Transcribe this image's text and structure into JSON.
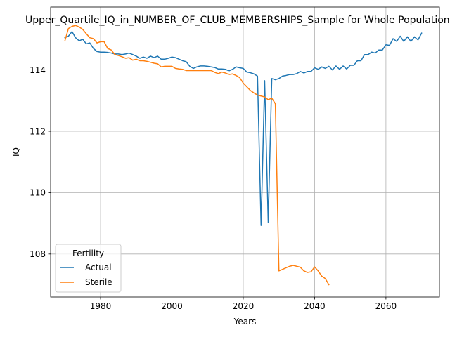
{
  "chart_data": {
    "type": "line",
    "title": "Upper_Quartile_IQ_in_NUMBER_OF_CLUB_MEMBERSHIPS_Sample for Whole Population",
    "xlabel": "Years",
    "ylabel": "IQ",
    "xlim": [
      1966,
      2075
    ],
    "ylim": [
      106.6,
      116.05
    ],
    "x_ticks": [
      1980,
      2000,
      2020,
      2040,
      2060
    ],
    "y_ticks": [
      108,
      110,
      112,
      114
    ],
    "grid": true,
    "legend": {
      "title": "Fertility",
      "placement": "lower-left"
    },
    "series": [
      {
        "name": "Actual",
        "color": "#1f77b4",
        "points": [
          [
            1970,
            115.05
          ],
          [
            1971,
            115.1
          ],
          [
            1972,
            115.25
          ],
          [
            1973,
            115.05
          ],
          [
            1974,
            114.95
          ],
          [
            1975,
            115.0
          ],
          [
            1976,
            114.85
          ],
          [
            1977,
            114.88
          ],
          [
            1978,
            114.7
          ],
          [
            1979,
            114.6
          ],
          [
            1980,
            114.58
          ],
          [
            1981,
            114.58
          ],
          [
            1982,
            114.57
          ],
          [
            1983,
            114.55
          ],
          [
            1984,
            114.52
          ],
          [
            1985,
            114.52
          ],
          [
            1986,
            114.5
          ],
          [
            1987,
            114.52
          ],
          [
            1988,
            114.55
          ],
          [
            1989,
            114.5
          ],
          [
            1990,
            114.45
          ],
          [
            1991,
            114.38
          ],
          [
            1992,
            114.42
          ],
          [
            1993,
            114.38
          ],
          [
            1994,
            114.45
          ],
          [
            1995,
            114.4
          ],
          [
            1996,
            114.45
          ],
          [
            1997,
            114.35
          ],
          [
            1998,
            114.35
          ],
          [
            1999,
            114.38
          ],
          [
            2000,
            114.42
          ],
          [
            2001,
            114.4
          ],
          [
            2002,
            114.35
          ],
          [
            2003,
            114.3
          ],
          [
            2004,
            114.27
          ],
          [
            2005,
            114.12
          ],
          [
            2006,
            114.05
          ],
          [
            2007,
            114.1
          ],
          [
            2008,
            114.13
          ],
          [
            2009,
            114.13
          ],
          [
            2010,
            114.12
          ],
          [
            2011,
            114.1
          ],
          [
            2012,
            114.08
          ],
          [
            2013,
            114.03
          ],
          [
            2014,
            114.03
          ],
          [
            2015,
            114.02
          ],
          [
            2016,
            113.97
          ],
          [
            2017,
            114.02
          ],
          [
            2018,
            114.1
          ],
          [
            2019,
            114.07
          ],
          [
            2020,
            114.05
          ],
          [
            2021,
            113.93
          ],
          [
            2022,
            113.91
          ],
          [
            2023,
            113.87
          ],
          [
            2024,
            113.8
          ],
          [
            2025,
            108.93
          ],
          [
            2026,
            113.65
          ],
          [
            2027,
            109.03
          ],
          [
            2028,
            113.72
          ],
          [
            2029,
            113.68
          ],
          [
            2030,
            113.72
          ],
          [
            2031,
            113.8
          ],
          [
            2032,
            113.82
          ],
          [
            2033,
            113.85
          ],
          [
            2034,
            113.85
          ],
          [
            2035,
            113.88
          ],
          [
            2036,
            113.95
          ],
          [
            2037,
            113.9
          ],
          [
            2038,
            113.95
          ],
          [
            2039,
            113.95
          ],
          [
            2040,
            114.07
          ],
          [
            2041,
            114.02
          ],
          [
            2042,
            114.1
          ],
          [
            2043,
            114.05
          ],
          [
            2044,
            114.12
          ],
          [
            2045,
            114.0
          ],
          [
            2046,
            114.13
          ],
          [
            2047,
            114.02
          ],
          [
            2048,
            114.13
          ],
          [
            2049,
            114.03
          ],
          [
            2050,
            114.15
          ],
          [
            2051,
            114.15
          ],
          [
            2052,
            114.3
          ],
          [
            2053,
            114.3
          ],
          [
            2054,
            114.5
          ],
          [
            2055,
            114.5
          ],
          [
            2056,
            114.58
          ],
          [
            2057,
            114.55
          ],
          [
            2058,
            114.65
          ],
          [
            2059,
            114.65
          ],
          [
            2060,
            114.82
          ],
          [
            2061,
            114.8
          ],
          [
            2062,
            115.02
          ],
          [
            2063,
            114.93
          ],
          [
            2064,
            115.1
          ],
          [
            2065,
            114.93
          ],
          [
            2066,
            115.08
          ],
          [
            2067,
            114.93
          ],
          [
            2068,
            115.08
          ],
          [
            2069,
            114.98
          ],
          [
            2070,
            115.2
          ]
        ]
      },
      {
        "name": "Sterile",
        "color": "#ff7f0e",
        "points": [
          [
            1970,
            114.95
          ],
          [
            1971,
            115.35
          ],
          [
            1972,
            115.42
          ],
          [
            1973,
            115.45
          ],
          [
            1974,
            115.4
          ],
          [
            1975,
            115.32
          ],
          [
            1976,
            115.18
          ],
          [
            1977,
            115.05
          ],
          [
            1978,
            115.02
          ],
          [
            1979,
            114.88
          ],
          [
            1980,
            114.92
          ],
          [
            1981,
            114.92
          ],
          [
            1982,
            114.7
          ],
          [
            1983,
            114.65
          ],
          [
            1984,
            114.5
          ],
          [
            1985,
            114.47
          ],
          [
            1986,
            114.43
          ],
          [
            1987,
            114.38
          ],
          [
            1988,
            114.4
          ],
          [
            1989,
            114.32
          ],
          [
            1990,
            114.35
          ],
          [
            1991,
            114.3
          ],
          [
            1992,
            114.3
          ],
          [
            1993,
            114.28
          ],
          [
            1994,
            114.25
          ],
          [
            1995,
            114.22
          ],
          [
            1996,
            114.2
          ],
          [
            1997,
            114.1
          ],
          [
            1998,
            114.12
          ],
          [
            1999,
            114.12
          ],
          [
            2000,
            114.12
          ],
          [
            2001,
            114.05
          ],
          [
            2002,
            114.03
          ],
          [
            2003,
            114.02
          ],
          [
            2004,
            113.98
          ],
          [
            2005,
            113.98
          ],
          [
            2006,
            113.98
          ],
          [
            2007,
            113.98
          ],
          [
            2008,
            113.98
          ],
          [
            2009,
            113.98
          ],
          [
            2010,
            113.98
          ],
          [
            2011,
            113.98
          ],
          [
            2012,
            113.92
          ],
          [
            2013,
            113.88
          ],
          [
            2014,
            113.93
          ],
          [
            2015,
            113.9
          ],
          [
            2016,
            113.85
          ],
          [
            2017,
            113.87
          ],
          [
            2018,
            113.82
          ],
          [
            2019,
            113.75
          ],
          [
            2020,
            113.57
          ],
          [
            2021,
            113.45
          ],
          [
            2022,
            113.33
          ],
          [
            2023,
            113.25
          ],
          [
            2024,
            113.18
          ],
          [
            2025,
            113.15
          ],
          [
            2026,
            113.12
          ],
          [
            2027,
            113.03
          ],
          [
            2028,
            113.08
          ],
          [
            2029,
            112.9
          ],
          [
            2030,
            107.45
          ],
          [
            2031,
            107.5
          ],
          [
            2032,
            107.55
          ],
          [
            2033,
            107.6
          ],
          [
            2034,
            107.63
          ],
          [
            2035,
            107.6
          ],
          [
            2036,
            107.57
          ],
          [
            2037,
            107.45
          ],
          [
            2038,
            107.4
          ],
          [
            2039,
            107.42
          ],
          [
            2040,
            107.58
          ],
          [
            2041,
            107.45
          ],
          [
            2042,
            107.28
          ],
          [
            2043,
            107.2
          ],
          [
            2044,
            107.0
          ]
        ]
      }
    ]
  }
}
